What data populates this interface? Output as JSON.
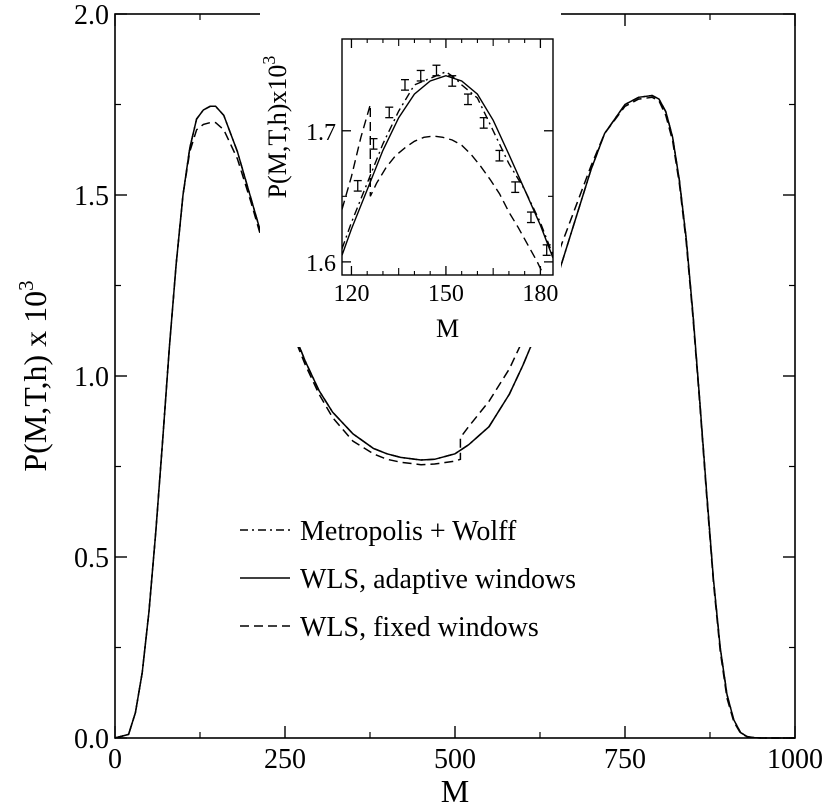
{
  "chart_data": {
    "type": "line",
    "xlabel": "M",
    "ylabel": "P(M,T,h) x 10",
    "ylabel_sup": "3",
    "xlim": [
      0,
      1000
    ],
    "ylim": [
      0,
      2.0
    ],
    "xticks": [
      0,
      250,
      500,
      750,
      1000
    ],
    "yticks": [
      0.0,
      0.5,
      1.0,
      1.5,
      2.0
    ],
    "xtick_labels": [
      "0",
      "250",
      "500",
      "750",
      "1000"
    ],
    "ytick_labels": [
      "0.0",
      "0.5",
      "1.0",
      "1.5",
      "2.0"
    ],
    "legend_position": "center",
    "grid": false,
    "series": [
      {
        "name": "Metropolis + Wolff",
        "style": "dash-dot",
        "x": [
          0,
          20,
          30,
          40,
          50,
          60,
          70,
          80,
          90,
          100,
          110,
          120,
          130,
          140,
          148,
          160,
          180,
          200,
          220,
          250,
          280,
          300,
          320,
          350,
          380,
          400,
          420,
          450,
          470,
          500,
          520,
          550,
          580,
          600,
          620,
          650,
          680,
          700,
          720,
          750,
          770,
          790,
          800,
          810,
          820,
          830,
          840,
          850,
          860,
          870,
          880,
          890,
          900,
          910,
          920,
          930,
          940,
          950,
          960,
          1000
        ],
        "y": [
          0,
          0.01,
          0.07,
          0.18,
          0.35,
          0.57,
          0.82,
          1.08,
          1.31,
          1.5,
          1.63,
          1.71,
          1.735,
          1.745,
          1.745,
          1.72,
          1.62,
          1.49,
          1.36,
          1.18,
          1.04,
          0.96,
          0.9,
          0.84,
          0.8,
          0.785,
          0.775,
          0.768,
          0.77,
          0.785,
          0.81,
          0.86,
          0.95,
          1.03,
          1.12,
          1.27,
          1.45,
          1.57,
          1.67,
          1.75,
          1.77,
          1.775,
          1.765,
          1.73,
          1.66,
          1.54,
          1.38,
          1.17,
          0.93,
          0.68,
          0.44,
          0.25,
          0.12,
          0.05,
          0.015,
          0.004,
          0.001,
          0,
          0,
          0
        ]
      },
      {
        "name": "WLS, adaptive windows",
        "style": "solid",
        "x": [
          0,
          20,
          30,
          40,
          50,
          60,
          70,
          80,
          90,
          100,
          110,
          120,
          130,
          140,
          148,
          160,
          180,
          200,
          220,
          250,
          280,
          300,
          320,
          350,
          380,
          400,
          420,
          450,
          470,
          500,
          520,
          550,
          580,
          600,
          620,
          650,
          680,
          700,
          720,
          750,
          770,
          790,
          800,
          810,
          820,
          830,
          840,
          850,
          860,
          870,
          880,
          890,
          900,
          910,
          920,
          930,
          940,
          950,
          960,
          1000
        ],
        "y": [
          0,
          0.01,
          0.07,
          0.18,
          0.35,
          0.57,
          0.82,
          1.08,
          1.31,
          1.5,
          1.63,
          1.71,
          1.735,
          1.745,
          1.745,
          1.72,
          1.62,
          1.49,
          1.36,
          1.18,
          1.04,
          0.96,
          0.9,
          0.84,
          0.8,
          0.785,
          0.775,
          0.768,
          0.77,
          0.785,
          0.81,
          0.86,
          0.95,
          1.03,
          1.12,
          1.27,
          1.45,
          1.57,
          1.67,
          1.75,
          1.77,
          1.775,
          1.765,
          1.73,
          1.66,
          1.54,
          1.38,
          1.17,
          0.93,
          0.68,
          0.44,
          0.25,
          0.12,
          0.05,
          0.015,
          0.004,
          0.001,
          0,
          0,
          0
        ]
      },
      {
        "name": "WLS, fixed windows",
        "style": "dashed",
        "x": [
          0,
          20,
          30,
          40,
          50,
          60,
          70,
          80,
          90,
          100,
          110,
          120,
          130,
          140,
          148,
          160,
          180,
          200,
          220,
          250,
          280,
          300,
          320,
          350,
          380,
          400,
          420,
          450,
          470,
          500,
          508,
          508,
          520,
          550,
          580,
          600,
          620,
          650,
          680,
          700,
          720,
          750,
          770,
          790,
          800,
          810,
          820,
          830,
          840,
          850,
          860,
          870,
          880,
          890,
          900,
          910,
          920,
          930,
          940,
          950,
          960,
          1000
        ],
        "y": [
          0,
          0.01,
          0.07,
          0.18,
          0.35,
          0.57,
          0.82,
          1.08,
          1.31,
          1.5,
          1.62,
          1.68,
          1.695,
          1.7,
          1.7,
          1.68,
          1.6,
          1.48,
          1.35,
          1.17,
          1.03,
          0.95,
          0.885,
          0.82,
          0.785,
          0.77,
          0.762,
          0.755,
          0.757,
          0.765,
          0.77,
          0.83,
          0.86,
          0.93,
          1.02,
          1.1,
          1.19,
          1.33,
          1.48,
          1.58,
          1.67,
          1.745,
          1.765,
          1.77,
          1.76,
          1.72,
          1.65,
          1.53,
          1.37,
          1.16,
          0.92,
          0.67,
          0.43,
          0.24,
          0.11,
          0.045,
          0.013,
          0.003,
          0.001,
          0,
          0,
          0
        ]
      }
    ],
    "inset": {
      "xlabel": "M",
      "ylabel": "P(M,T,h)x10",
      "ylabel_sup": "3",
      "xlim": [
        117,
        184
      ],
      "ylim": [
        1.59,
        1.77
      ],
      "xticks": [
        120,
        150,
        180
      ],
      "yticks": [
        1.6,
        1.7
      ],
      "xtick_labels": [
        "120",
        "150",
        "180"
      ],
      "ytick_labels": [
        "1.6",
        "1.7"
      ],
      "series": [
        {
          "name": "Metropolis + Wolff",
          "style": "dash-dot",
          "x": [
            117,
            120,
            125,
            130,
            135,
            140,
            145,
            150,
            153,
            155,
            160,
            165,
            170,
            175,
            180,
            184
          ],
          "y": [
            1.61,
            1.63,
            1.66,
            1.69,
            1.715,
            1.735,
            1.74,
            1.745,
            1.74,
            1.735,
            1.725,
            1.7,
            1.675,
            1.655,
            1.63,
            1.605
          ]
        },
        {
          "name": "WLS, adaptive windows",
          "style": "solid",
          "x": [
            117,
            120,
            125,
            130,
            135,
            140,
            145,
            150,
            155,
            160,
            165,
            170,
            175,
            180,
            184
          ],
          "y": [
            1.605,
            1.625,
            1.655,
            1.685,
            1.71,
            1.728,
            1.738,
            1.742,
            1.738,
            1.728,
            1.708,
            1.682,
            1.655,
            1.628,
            1.603
          ]
        },
        {
          "name": "WLS, fixed windows",
          "style": "dashed",
          "x": [
            117,
            120,
            123,
            126,
            126,
            128,
            131,
            134,
            137,
            140,
            143,
            146,
            149,
            152,
            155,
            158,
            161,
            164,
            167,
            170,
            173,
            176,
            179,
            182
          ],
          "y": [
            1.64,
            1.665,
            1.695,
            1.72,
            1.65,
            1.66,
            1.672,
            1.681,
            1.687,
            1.692,
            1.695,
            1.696,
            1.695,
            1.693,
            1.689,
            1.682,
            1.673,
            1.663,
            1.652,
            1.638,
            1.626,
            1.613,
            1.6,
            1.585
          ]
        }
      ],
      "error_bars": {
        "x": [
          122,
          127,
          132,
          137,
          142,
          147,
          152,
          157,
          162,
          167,
          172,
          177,
          182
        ],
        "y": [
          1.658,
          1.69,
          1.714,
          1.735,
          1.742,
          1.746,
          1.738,
          1.724,
          1.706,
          1.681,
          1.657,
          1.634,
          1.609
        ],
        "err": [
          0.004,
          0.004,
          0.004,
          0.004,
          0.004,
          0.004,
          0.004,
          0.004,
          0.004,
          0.004,
          0.004,
          0.004,
          0.004
        ]
      }
    }
  }
}
